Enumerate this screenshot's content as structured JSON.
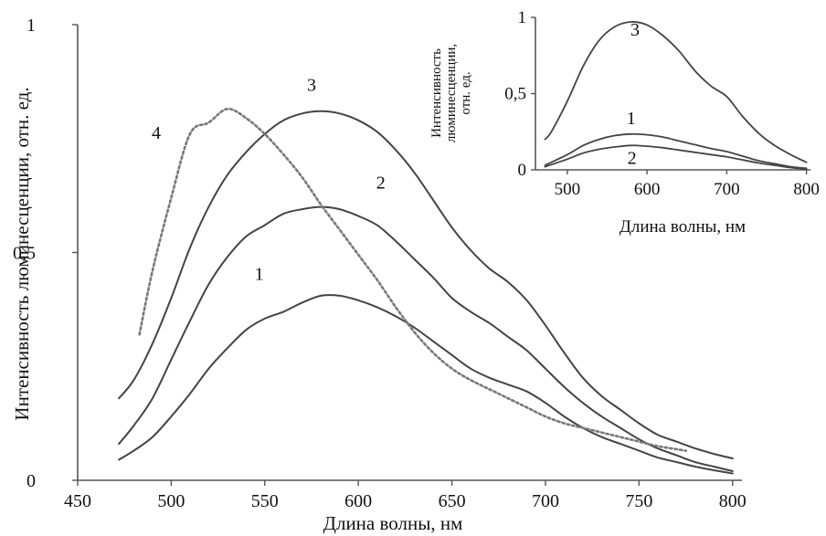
{
  "chart_data": [
    {
      "id": "main",
      "type": "line",
      "xlabel": "Длина волны, нм",
      "ylabel": "Интенсивность люминесценции, отн. ед.",
      "xlim": [
        450,
        805
      ],
      "ylim": [
        0,
        1
      ],
      "x_ticks": [
        450,
        500,
        550,
        600,
        650,
        700,
        750,
        800
      ],
      "x_tick_labels": [
        "450",
        "500",
        "550",
        "600",
        "650",
        "700",
        "750",
        "800"
      ],
      "y_ticks": [
        0,
        0.5,
        1
      ],
      "y_tick_labels": [
        "0",
        "0,5",
        "1"
      ],
      "grid": false,
      "series": [
        {
          "name": "1",
          "color": "#444444",
          "dash": "solid",
          "x": [
            472,
            480,
            490,
            500,
            510,
            520,
            530,
            540,
            550,
            560,
            570,
            580,
            590,
            600,
            610,
            620,
            630,
            640,
            650,
            660,
            670,
            680,
            690,
            700,
            710,
            720,
            730,
            740,
            750,
            760,
            770,
            780,
            790,
            800
          ],
          "y": [
            0.045,
            0.065,
            0.095,
            0.14,
            0.19,
            0.245,
            0.29,
            0.33,
            0.355,
            0.37,
            0.39,
            0.405,
            0.405,
            0.395,
            0.38,
            0.36,
            0.335,
            0.305,
            0.275,
            0.245,
            0.225,
            0.21,
            0.195,
            0.17,
            0.14,
            0.115,
            0.095,
            0.08,
            0.065,
            0.05,
            0.04,
            0.03,
            0.022,
            0.015
          ]
        },
        {
          "name": "2",
          "color": "#444444",
          "dash": "solid",
          "x": [
            472,
            480,
            490,
            500,
            510,
            520,
            530,
            540,
            550,
            560,
            570,
            580,
            590,
            600,
            610,
            620,
            630,
            640,
            650,
            660,
            670,
            680,
            690,
            700,
            710,
            720,
            730,
            740,
            750,
            760,
            770,
            780,
            790,
            800
          ],
          "y": [
            0.08,
            0.12,
            0.18,
            0.265,
            0.35,
            0.43,
            0.49,
            0.535,
            0.56,
            0.585,
            0.595,
            0.6,
            0.595,
            0.58,
            0.56,
            0.525,
            0.485,
            0.445,
            0.4,
            0.37,
            0.345,
            0.315,
            0.285,
            0.245,
            0.205,
            0.17,
            0.14,
            0.115,
            0.09,
            0.07,
            0.055,
            0.04,
            0.03,
            0.02
          ]
        },
        {
          "name": "3",
          "color": "#444444",
          "dash": "solid",
          "x": [
            472,
            480,
            490,
            500,
            510,
            520,
            530,
            540,
            550,
            560,
            570,
            580,
            590,
            600,
            610,
            620,
            630,
            640,
            650,
            660,
            670,
            680,
            690,
            700,
            710,
            720,
            730,
            740,
            750,
            760,
            770,
            780,
            790,
            800
          ],
          "y": [
            0.18,
            0.22,
            0.3,
            0.4,
            0.51,
            0.6,
            0.67,
            0.72,
            0.76,
            0.79,
            0.805,
            0.81,
            0.805,
            0.79,
            0.765,
            0.725,
            0.675,
            0.615,
            0.555,
            0.505,
            0.465,
            0.435,
            0.395,
            0.34,
            0.28,
            0.225,
            0.185,
            0.155,
            0.125,
            0.1,
            0.085,
            0.07,
            0.058,
            0.048
          ]
        },
        {
          "name": "4",
          "color": "#777777",
          "dash": "dotted",
          "x": [
            483,
            490,
            500,
            510,
            520,
            530,
            540,
            550,
            560,
            570,
            580,
            590,
            600,
            610,
            620,
            630,
            640,
            650,
            660,
            670,
            680,
            690,
            700,
            710,
            720,
            730,
            740,
            750,
            760,
            775
          ],
          "y": [
            0.32,
            0.46,
            0.62,
            0.76,
            0.785,
            0.815,
            0.795,
            0.76,
            0.715,
            0.665,
            0.605,
            0.55,
            0.495,
            0.44,
            0.38,
            0.325,
            0.28,
            0.245,
            0.22,
            0.2,
            0.18,
            0.16,
            0.14,
            0.125,
            0.115,
            0.105,
            0.095,
            0.085,
            0.075,
            0.065
          ]
        }
      ],
      "annotations": [
        {
          "text": "1",
          "x": 547,
          "y": 0.44
        },
        {
          "text": "2",
          "x": 612,
          "y": 0.64
        },
        {
          "text": "3",
          "x": 575,
          "y": 0.855
        },
        {
          "text": "4",
          "x": 492,
          "y": 0.75
        }
      ]
    },
    {
      "id": "inset",
      "type": "line",
      "xlabel": "Длина волны, нм",
      "ylabel": "Интенсивность люминесценции, отн. ед.",
      "ylabel_lines": [
        "Интенсивность",
        "люминесценции,",
        "отн. ед."
      ],
      "xlim": [
        460,
        805
      ],
      "ylim": [
        0,
        1
      ],
      "x_ticks": [
        500,
        600,
        700,
        800
      ],
      "x_tick_labels": [
        "500",
        "600",
        "700",
        "800"
      ],
      "y_ticks": [
        0,
        0.5,
        1
      ],
      "y_tick_labels": [
        "0",
        "0,5",
        "1"
      ],
      "grid": false,
      "series": [
        {
          "name": "1",
          "color": "#444444",
          "x": [
            472,
            500,
            520,
            540,
            560,
            580,
            600,
            620,
            640,
            660,
            680,
            700,
            720,
            740,
            760,
            780,
            800
          ],
          "y": [
            0.03,
            0.1,
            0.16,
            0.2,
            0.225,
            0.235,
            0.23,
            0.215,
            0.19,
            0.165,
            0.14,
            0.12,
            0.09,
            0.06,
            0.04,
            0.02,
            0.01
          ]
        },
        {
          "name": "2",
          "color": "#444444",
          "x": [
            472,
            500,
            520,
            540,
            560,
            580,
            600,
            620,
            640,
            660,
            680,
            700,
            720,
            740,
            760,
            780,
            800
          ],
          "y": [
            0.02,
            0.07,
            0.11,
            0.135,
            0.15,
            0.16,
            0.155,
            0.145,
            0.13,
            0.115,
            0.1,
            0.085,
            0.065,
            0.045,
            0.03,
            0.015,
            0.005
          ]
        },
        {
          "name": "3",
          "color": "#444444",
          "x": [
            472,
            480,
            500,
            520,
            540,
            560,
            580,
            600,
            620,
            640,
            660,
            680,
            700,
            720,
            740,
            760,
            780,
            800
          ],
          "y": [
            0.2,
            0.25,
            0.45,
            0.68,
            0.85,
            0.94,
            0.97,
            0.95,
            0.88,
            0.78,
            0.65,
            0.55,
            0.48,
            0.35,
            0.24,
            0.16,
            0.1,
            0.05
          ]
        }
      ],
      "annotations": [
        {
          "text": "1",
          "x": 580,
          "y": 0.3
        },
        {
          "text": "2",
          "x": 581,
          "y": 0.04
        },
        {
          "text": "3",
          "x": 585,
          "y": 0.88
        }
      ]
    }
  ]
}
